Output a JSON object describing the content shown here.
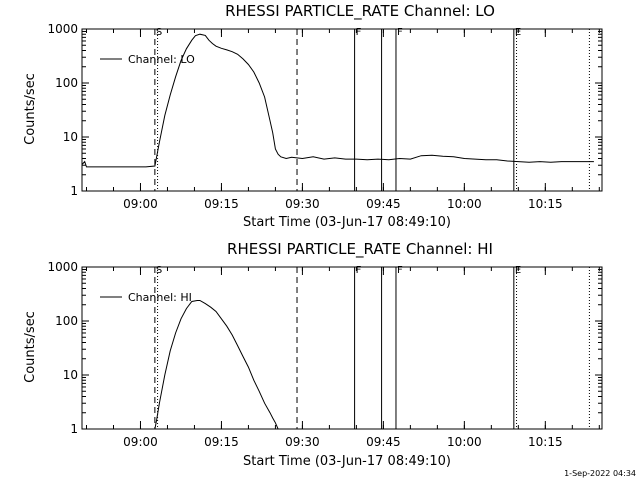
{
  "footer": {
    "timestamp": "1-Sep-2022 04:34"
  },
  "chart_data": [
    {
      "type": "line",
      "title": "RHESSI PARTICLE_RATE Channel: LO",
      "xlabel": "Start Time (03-Jun-17 08:49:10)",
      "ylabel": "Counts/sec",
      "y_scale": "log",
      "ylim": [
        1,
        1000
      ],
      "xlim": [
        "08:49:10",
        "10:25:30"
      ],
      "x_ticks": [
        "09:00",
        "09:15",
        "09:30",
        "09:45",
        "10:00",
        "10:15"
      ],
      "y_ticks": [
        "1",
        "10",
        "100",
        "1000"
      ],
      "legend": {
        "entries": [
          "Channel: LO"
        ],
        "position": "top-left"
      },
      "markers": [
        {
          "label": "S",
          "time": "09:02:40",
          "style": "dashed"
        },
        {
          "label": "",
          "time": "09:03:10",
          "style": "dotted"
        },
        {
          "label": "",
          "time": "09:29:00",
          "style": "dashed"
        },
        {
          "label": "F",
          "time": "09:39:40",
          "style": "solid"
        },
        {
          "label": "",
          "time": "09:44:40",
          "style": "solid"
        },
        {
          "label": "F",
          "time": "09:47:20",
          "style": "solid"
        },
        {
          "label": "E",
          "time": "10:09:10",
          "style": "solid"
        },
        {
          "label": "",
          "time": "10:09:40",
          "style": "dotted"
        },
        {
          "label": "",
          "time": "10:23:10",
          "style": "dotted"
        }
      ],
      "series": [
        {
          "name": "Channel: LO",
          "points": [
            [
              "08:49:10",
              3.1
            ],
            [
              "08:49:40",
              3.5
            ],
            [
              "08:50:00",
              2.8
            ],
            [
              "09:00:00",
              2.8
            ],
            [
              "09:00:30",
              2.8
            ],
            [
              "09:01:00",
              2.8
            ],
            [
              "09:02:40",
              2.9
            ],
            [
              "09:03:30",
              8
            ],
            [
              "09:04:30",
              25
            ],
            [
              "09:05:30",
              60
            ],
            [
              "09:06:30",
              130
            ],
            [
              "09:07:30",
              260
            ],
            [
              "09:08:30",
              430
            ],
            [
              "09:09:30",
              620
            ],
            [
              "09:10:10",
              750
            ],
            [
              "09:11:00",
              800
            ],
            [
              "09:12:00",
              760
            ],
            [
              "09:12:40",
              620
            ],
            [
              "09:13:20",
              540
            ],
            [
              "09:14:00",
              480
            ],
            [
              "09:15:00",
              440
            ],
            [
              "09:16:00",
              410
            ],
            [
              "09:17:00",
              380
            ],
            [
              "09:18:00",
              340
            ],
            [
              "09:19:00",
              280
            ],
            [
              "09:20:00",
              220
            ],
            [
              "09:21:00",
              160
            ],
            [
              "09:22:00",
              100
            ],
            [
              "09:23:00",
              55
            ],
            [
              "09:24:00",
              20
            ],
            [
              "09:24:30",
              12
            ],
            [
              "09:25:00",
              6
            ],
            [
              "09:25:30",
              4.8
            ],
            [
              "09:26:00",
              4.3
            ],
            [
              "09:27:00",
              4.0
            ],
            [
              "09:28:00",
              4.2
            ],
            [
              "09:30:00",
              4.0
            ],
            [
              "09:32:00",
              4.3
            ],
            [
              "09:34:00",
              3.9
            ],
            [
              "09:36:00",
              4.1
            ],
            [
              "09:38:00",
              3.9
            ],
            [
              "09:40:00",
              3.9
            ],
            [
              "09:42:00",
              3.8
            ],
            [
              "09:44:00",
              3.9
            ],
            [
              "09:46:00",
              3.8
            ],
            [
              "09:48:00",
              4.0
            ],
            [
              "09:50:00",
              3.9
            ],
            [
              "09:52:00",
              4.5
            ],
            [
              "09:54:00",
              4.6
            ],
            [
              "09:56:00",
              4.4
            ],
            [
              "09:58:00",
              4.3
            ],
            [
              "10:00:00",
              4.0
            ],
            [
              "10:02:00",
              3.9
            ],
            [
              "10:04:00",
              3.8
            ],
            [
              "10:06:00",
              3.8
            ],
            [
              "10:08:00",
              3.6
            ],
            [
              "10:10:00",
              3.5
            ],
            [
              "10:12:00",
              3.4
            ],
            [
              "10:14:00",
              3.5
            ],
            [
              "10:16:00",
              3.4
            ],
            [
              "10:18:00",
              3.5
            ],
            [
              "10:20:00",
              3.5
            ],
            [
              "10:22:00",
              3.5
            ],
            [
              "10:24:00",
              3.5
            ]
          ]
        }
      ]
    },
    {
      "type": "line",
      "title": "RHESSI PARTICLE_RATE Channel: HI",
      "xlabel": "Start Time (03-Jun-17 08:49:10)",
      "ylabel": "Counts/sec",
      "y_scale": "log",
      "ylim": [
        1,
        1000
      ],
      "xlim": [
        "08:49:10",
        "10:25:30"
      ],
      "x_ticks": [
        "09:00",
        "09:15",
        "09:30",
        "09:45",
        "10:00",
        "10:15"
      ],
      "y_ticks": [
        "1",
        "10",
        "100",
        "1000"
      ],
      "legend": {
        "entries": [
          "Channel: HI"
        ],
        "position": "top-left"
      },
      "markers": [
        {
          "label": "S",
          "time": "09:02:40",
          "style": "dashed"
        },
        {
          "label": "",
          "time": "09:03:10",
          "style": "dotted"
        },
        {
          "label": "",
          "time": "09:29:00",
          "style": "dashed"
        },
        {
          "label": "F",
          "time": "09:39:40",
          "style": "solid"
        },
        {
          "label": "",
          "time": "09:44:40",
          "style": "solid"
        },
        {
          "label": "F",
          "time": "09:47:20",
          "style": "solid"
        },
        {
          "label": "E",
          "time": "10:09:10",
          "style": "solid"
        },
        {
          "label": "",
          "time": "10:09:40",
          "style": "dotted"
        },
        {
          "label": "",
          "time": "10:23:10",
          "style": "dotted"
        }
      ],
      "series": [
        {
          "name": "Channel: HI",
          "points": [
            [
              "09:02:40",
              1.0
            ],
            [
              "09:03:00",
              1.5
            ],
            [
              "09:03:30",
              3
            ],
            [
              "09:04:30",
              10
            ],
            [
              "09:05:30",
              28
            ],
            [
              "09:06:30",
              60
            ],
            [
              "09:07:30",
              110
            ],
            [
              "09:08:30",
              170
            ],
            [
              "09:09:30",
              230
            ],
            [
              "09:10:30",
              240
            ],
            [
              "09:11:00",
              240
            ],
            [
              "09:12:00",
              210
            ],
            [
              "09:13:00",
              180
            ],
            [
              "09:14:00",
              150
            ],
            [
              "09:15:00",
              110
            ],
            [
              "09:16:00",
              80
            ],
            [
              "09:17:00",
              55
            ],
            [
              "09:18:00",
              35
            ],
            [
              "09:19:00",
              22
            ],
            [
              "09:20:00",
              14
            ],
            [
              "09:21:00",
              8
            ],
            [
              "09:22:00",
              5
            ],
            [
              "09:23:00",
              3
            ],
            [
              "09:24:00",
              2
            ],
            [
              "09:24:30",
              1.6
            ],
            [
              "09:25:00",
              1.3
            ],
            [
              "09:25:30",
              1.0
            ]
          ]
        }
      ]
    }
  ]
}
